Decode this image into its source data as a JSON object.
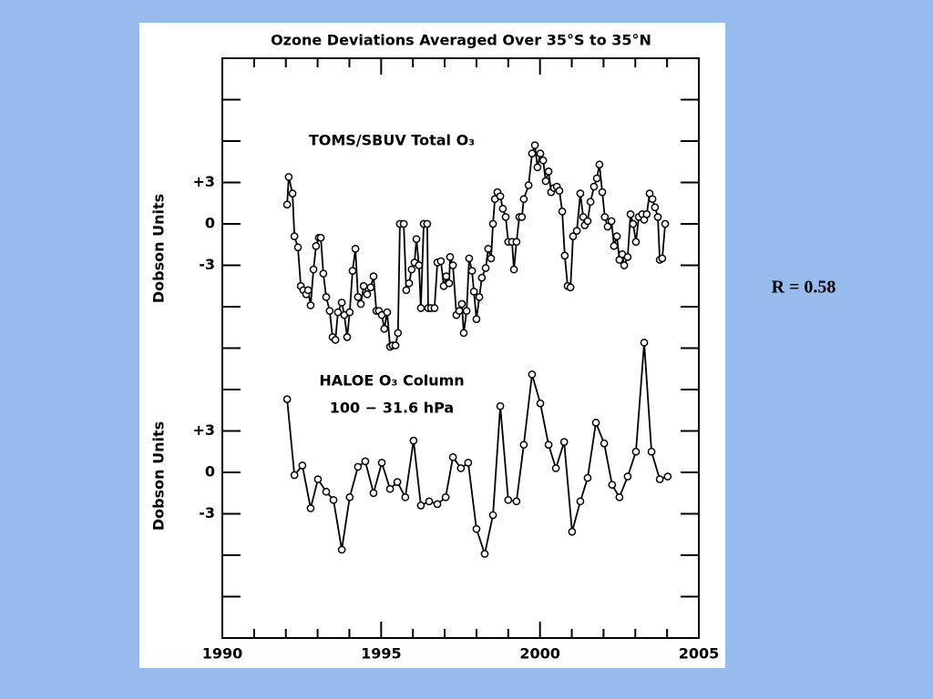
{
  "chart_data": {
    "type": "line",
    "title": "Ozone Deviations Averaged Over 35°S to 35°N",
    "color": "#000000",
    "xlim": [
      1990,
      2005
    ],
    "xticks": [
      1990,
      1995,
      2000,
      2005
    ],
    "minor_xticks": [
      1991,
      1992,
      1993,
      1994,
      1996,
      1997,
      1998,
      1999,
      2001,
      2002,
      2003,
      2004
    ],
    "panels": [
      {
        "ylabel": "Dobson Units",
        "ylim": [
          -30,
          12
        ],
        "yticks": [
          {
            "value": 3,
            "label": "+3"
          },
          0,
          -3
        ],
        "minor_yticks": [
          -9,
          -6,
          6,
          9
        ],
        "series": [
          {
            "name": "TOMS/SBUV Total O₃",
            "x": [
              1992.04,
              1992.09,
              1992.21,
              1992.27,
              1992.38,
              1992.47,
              1992.55,
              1992.64,
              1992.7,
              1992.78,
              1992.87,
              1992.95,
              1993.04,
              1993.1,
              1993.18,
              1993.27,
              1993.38,
              1993.47,
              1993.56,
              1993.64,
              1993.76,
              1993.84,
              1993.93,
              1994.01,
              1994.1,
              1994.19,
              1994.27,
              1994.36,
              1994.45,
              1994.56,
              1994.67,
              1994.76,
              1994.85,
              1994.93,
              1995.02,
              1995.1,
              1995.19,
              1995.28,
              1995.36,
              1995.45,
              1995.53,
              1995.59,
              1995.71,
              1995.79,
              1995.88,
              1995.96,
              1996.05,
              1996.11,
              1996.19,
              1996.25,
              1996.34,
              1996.45,
              1996.48,
              1996.57,
              1996.68,
              1996.77,
              1996.88,
              1996.97,
              1997.05,
              1997.14,
              1997.17,
              1997.26,
              1997.37,
              1997.46,
              1997.54,
              1997.6,
              1997.69,
              1997.77,
              1997.86,
              1997.92,
              1998.0,
              1998.09,
              1998.17,
              1998.29,
              1998.37,
              1998.46,
              1998.52,
              1998.58,
              1998.66,
              1998.75,
              1998.83,
              1998.92,
              1999.0,
              1999.12,
              1999.18,
              1999.26,
              1999.35,
              1999.43,
              1999.49,
              1999.64,
              1999.75,
              1999.84,
              1999.92,
              2000.01,
              2000.1,
              2000.18,
              2000.27,
              2000.35,
              2000.44,
              2000.53,
              2000.61,
              2000.7,
              2000.78,
              2000.87,
              2000.96,
              2001.04,
              2001.16,
              2001.27,
              2001.36,
              2001.41,
              2001.5,
              2001.59,
              2001.7,
              2001.79,
              2001.87,
              2001.96,
              2002.04,
              2002.13,
              2002.25,
              2002.33,
              2002.42,
              2002.5,
              2002.59,
              2002.65,
              2002.76,
              2002.85,
              2002.93,
              2003.02,
              2003.11,
              2003.22,
              2003.28,
              2003.36,
              2003.45,
              2003.54,
              2003.62,
              2003.71,
              2003.77,
              2003.85,
              2003.94
            ],
            "values": [
              1.4,
              3.4,
              2.2,
              -0.9,
              -1.7,
              -4.5,
              -4.8,
              -5.1,
              -4.8,
              -5.9,
              -3.3,
              -1.6,
              -1.0,
              -1.0,
              -3.6,
              -5.3,
              -6.3,
              -8.2,
              -8.4,
              -6.4,
              -5.7,
              -6.6,
              -8.2,
              -6.4,
              -3.4,
              -1.8,
              -5.3,
              -5.8,
              -4.5,
              -5.1,
              -4.6,
              -3.8,
              -6.3,
              -6.3,
              -6.6,
              -7.6,
              -6.4,
              -8.9,
              -8.8,
              -8.8,
              -7.9,
              0,
              0,
              -4.8,
              -4.3,
              -3.3,
              -2.8,
              -1.1,
              -3.0,
              -6.1,
              0,
              0,
              -6.1,
              -6.1,
              -6.1,
              -2.8,
              -2.7,
              -4.5,
              -3.8,
              -4.3,
              -2.4,
              -3.0,
              -6.6,
              -6.3,
              -5.8,
              -7.9,
              -6.3,
              -2.5,
              -3.4,
              -4.9,
              -6.9,
              -5.3,
              -3.9,
              -3.2,
              -1.8,
              -2.5,
              0,
              1.8,
              2.3,
              2.0,
              1.1,
              0.5,
              -1.3,
              -1.3,
              -3.3,
              -1.3,
              0.5,
              0.5,
              1.8,
              2.8,
              5.1,
              5.7,
              4.1,
              5.1,
              4.6,
              3.1,
              3.8,
              2.3,
              2.6,
              2.7,
              2.4,
              0.9,
              -2.3,
              -4.5,
              -4.6,
              -0.9,
              -0.5,
              2.2,
              0.5,
              -0.1,
              0.2,
              1.6,
              2.7,
              3.3,
              4.3,
              2.3,
              0.5,
              -0.2,
              0.2,
              -1.6,
              -0.9,
              -2.6,
              -2.2,
              -3.0,
              -2.4,
              0.7,
              0,
              -1.3,
              0.5,
              0.7,
              0.3,
              0.7,
              2.2,
              1.8,
              1.2,
              0.5,
              -2.6,
              -2.5,
              0
            ]
          }
        ]
      },
      {
        "ylabel": "Dobson Units",
        "ylim": [
          -12,
          30
        ],
        "yticks": [
          {
            "value": 3,
            "label": "+3"
          },
          0,
          -3
        ],
        "minor_yticks": [
          -9,
          -6,
          6
        ],
        "series": [
          {
            "name": "HALOE O₃ Column",
            "note": "100 − 31.6 hPa",
            "x": [
              1992.04,
              1992.27,
              1992.52,
              1992.78,
              1993.01,
              1993.27,
              1993.5,
              1993.76,
              1994.01,
              1994.27,
              1994.5,
              1994.76,
              1995.02,
              1995.28,
              1995.51,
              1995.76,
              1996.02,
              1996.25,
              1996.51,
              1996.77,
              1997.03,
              1997.26,
              1997.51,
              1997.74,
              1998.0,
              1998.26,
              1998.52,
              1998.75,
              1999.0,
              1999.26,
              1999.49,
              1999.75,
              2000.01,
              2000.27,
              2000.5,
              2000.76,
              2001.01,
              2001.27,
              2001.5,
              2001.76,
              2002.02,
              2002.27,
              2002.5,
              2002.76,
              2003.02,
              2003.28,
              2003.51,
              2003.77,
              2004.02
            ],
            "values": [
              5.3,
              -0.2,
              0.5,
              -2.6,
              -0.5,
              -1.4,
              -2.0,
              -5.6,
              -1.8,
              0.4,
              0.8,
              -1.5,
              0.7,
              -1.2,
              -0.7,
              -1.8,
              2.3,
              -2.4,
              -2.1,
              -2.3,
              -1.8,
              1.1,
              0.3,
              0.7,
              -4.1,
              -5.9,
              -3.1,
              4.8,
              -2.0,
              -2.1,
              2.0,
              7.1,
              5.0,
              2.0,
              0.3,
              2.2,
              -4.3,
              -2.1,
              -0.4,
              3.6,
              2.1,
              -0.9,
              -1.8,
              -0.3,
              1.5,
              9.4,
              1.5,
              -0.5,
              -0.3
            ]
          }
        ]
      }
    ]
  },
  "annotation": "R = 0.58"
}
